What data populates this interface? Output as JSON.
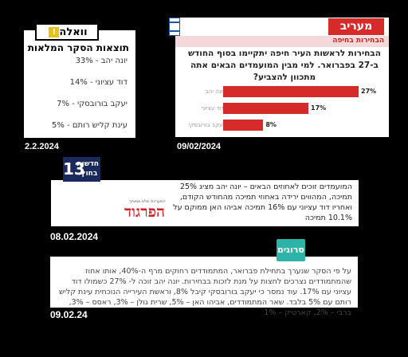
{
  "walla": {
    "logo": "וואלה",
    "logo_mark": "!",
    "title": "תוצאות הסקר המלאות",
    "rows": [
      "יונה יהב - 33%",
      "דוד עציוני - 14%",
      "יעקב בורובסקי - 7%",
      "עינת קליש רותם - 5%"
    ],
    "date": "2.2.2024"
  },
  "maariv": {
    "logo": "מעריב",
    "subtitle": "הבחירות בחיפה",
    "question": "הבחירות לראשות העיר חיפה יתקיימו בסוף החודש ב-27 בפברואר. למי מבין המועמדים הבאים אתה מתכוון להצביע?",
    "date": "09/02/2024",
    "colors": {
      "bar": "#d62b2b"
    }
  },
  "chart_data": {
    "type": "bar",
    "categories": [
      "יונה יהב",
      "דוד עציוני",
      "יעקב בורובסקי"
    ],
    "values": [
      27,
      17,
      8
    ],
    "value_labels": [
      "27%",
      "17%",
      "8%"
    ],
    "xlim": [
      0,
      27
    ]
  },
  "midgam": {
    "tv_number": "13",
    "tv_text": "חדשות בחוץ",
    "brand": "הפרגוד",
    "brand_tag": "המערכת שלנו ושאתך",
    "text": "המועמדים זוכים לאחוזים הבאים – יונה יהב מציג 25% תמיכה, המהווים ירידה באחוזי תמיכה מהחודש הקודם, ואחריו דוד עציוני עם 16% תמיכה אביהו האן ממוקם על 10.1% תמיכה",
    "date": "08.02.2024"
  },
  "srugim": {
    "logo": "סרוגים",
    "text": "על פי הסקר שנערך בתחילת פברואר, המתמודדים רחוקים מרף ה-40%, אותו אחוז שהמתמודדים נצרכים לחצות על מנת לזכות בבחירות. יונה יהב זוכה ל- 27% כשמולו דוד עציוני עם 17%. עוד נמסר כי יעקב בורובסקי קיבל 8%, וראשת העירייה הנוכחית עינת קליש רותם עם 5% בלבד. שאר המתמודדים, אביהו האן – 5%, שרית גולן – 3%, ראסס – 3%, ברבי – 2%, קארטיק – 1%",
    "date": "09.02.24"
  }
}
